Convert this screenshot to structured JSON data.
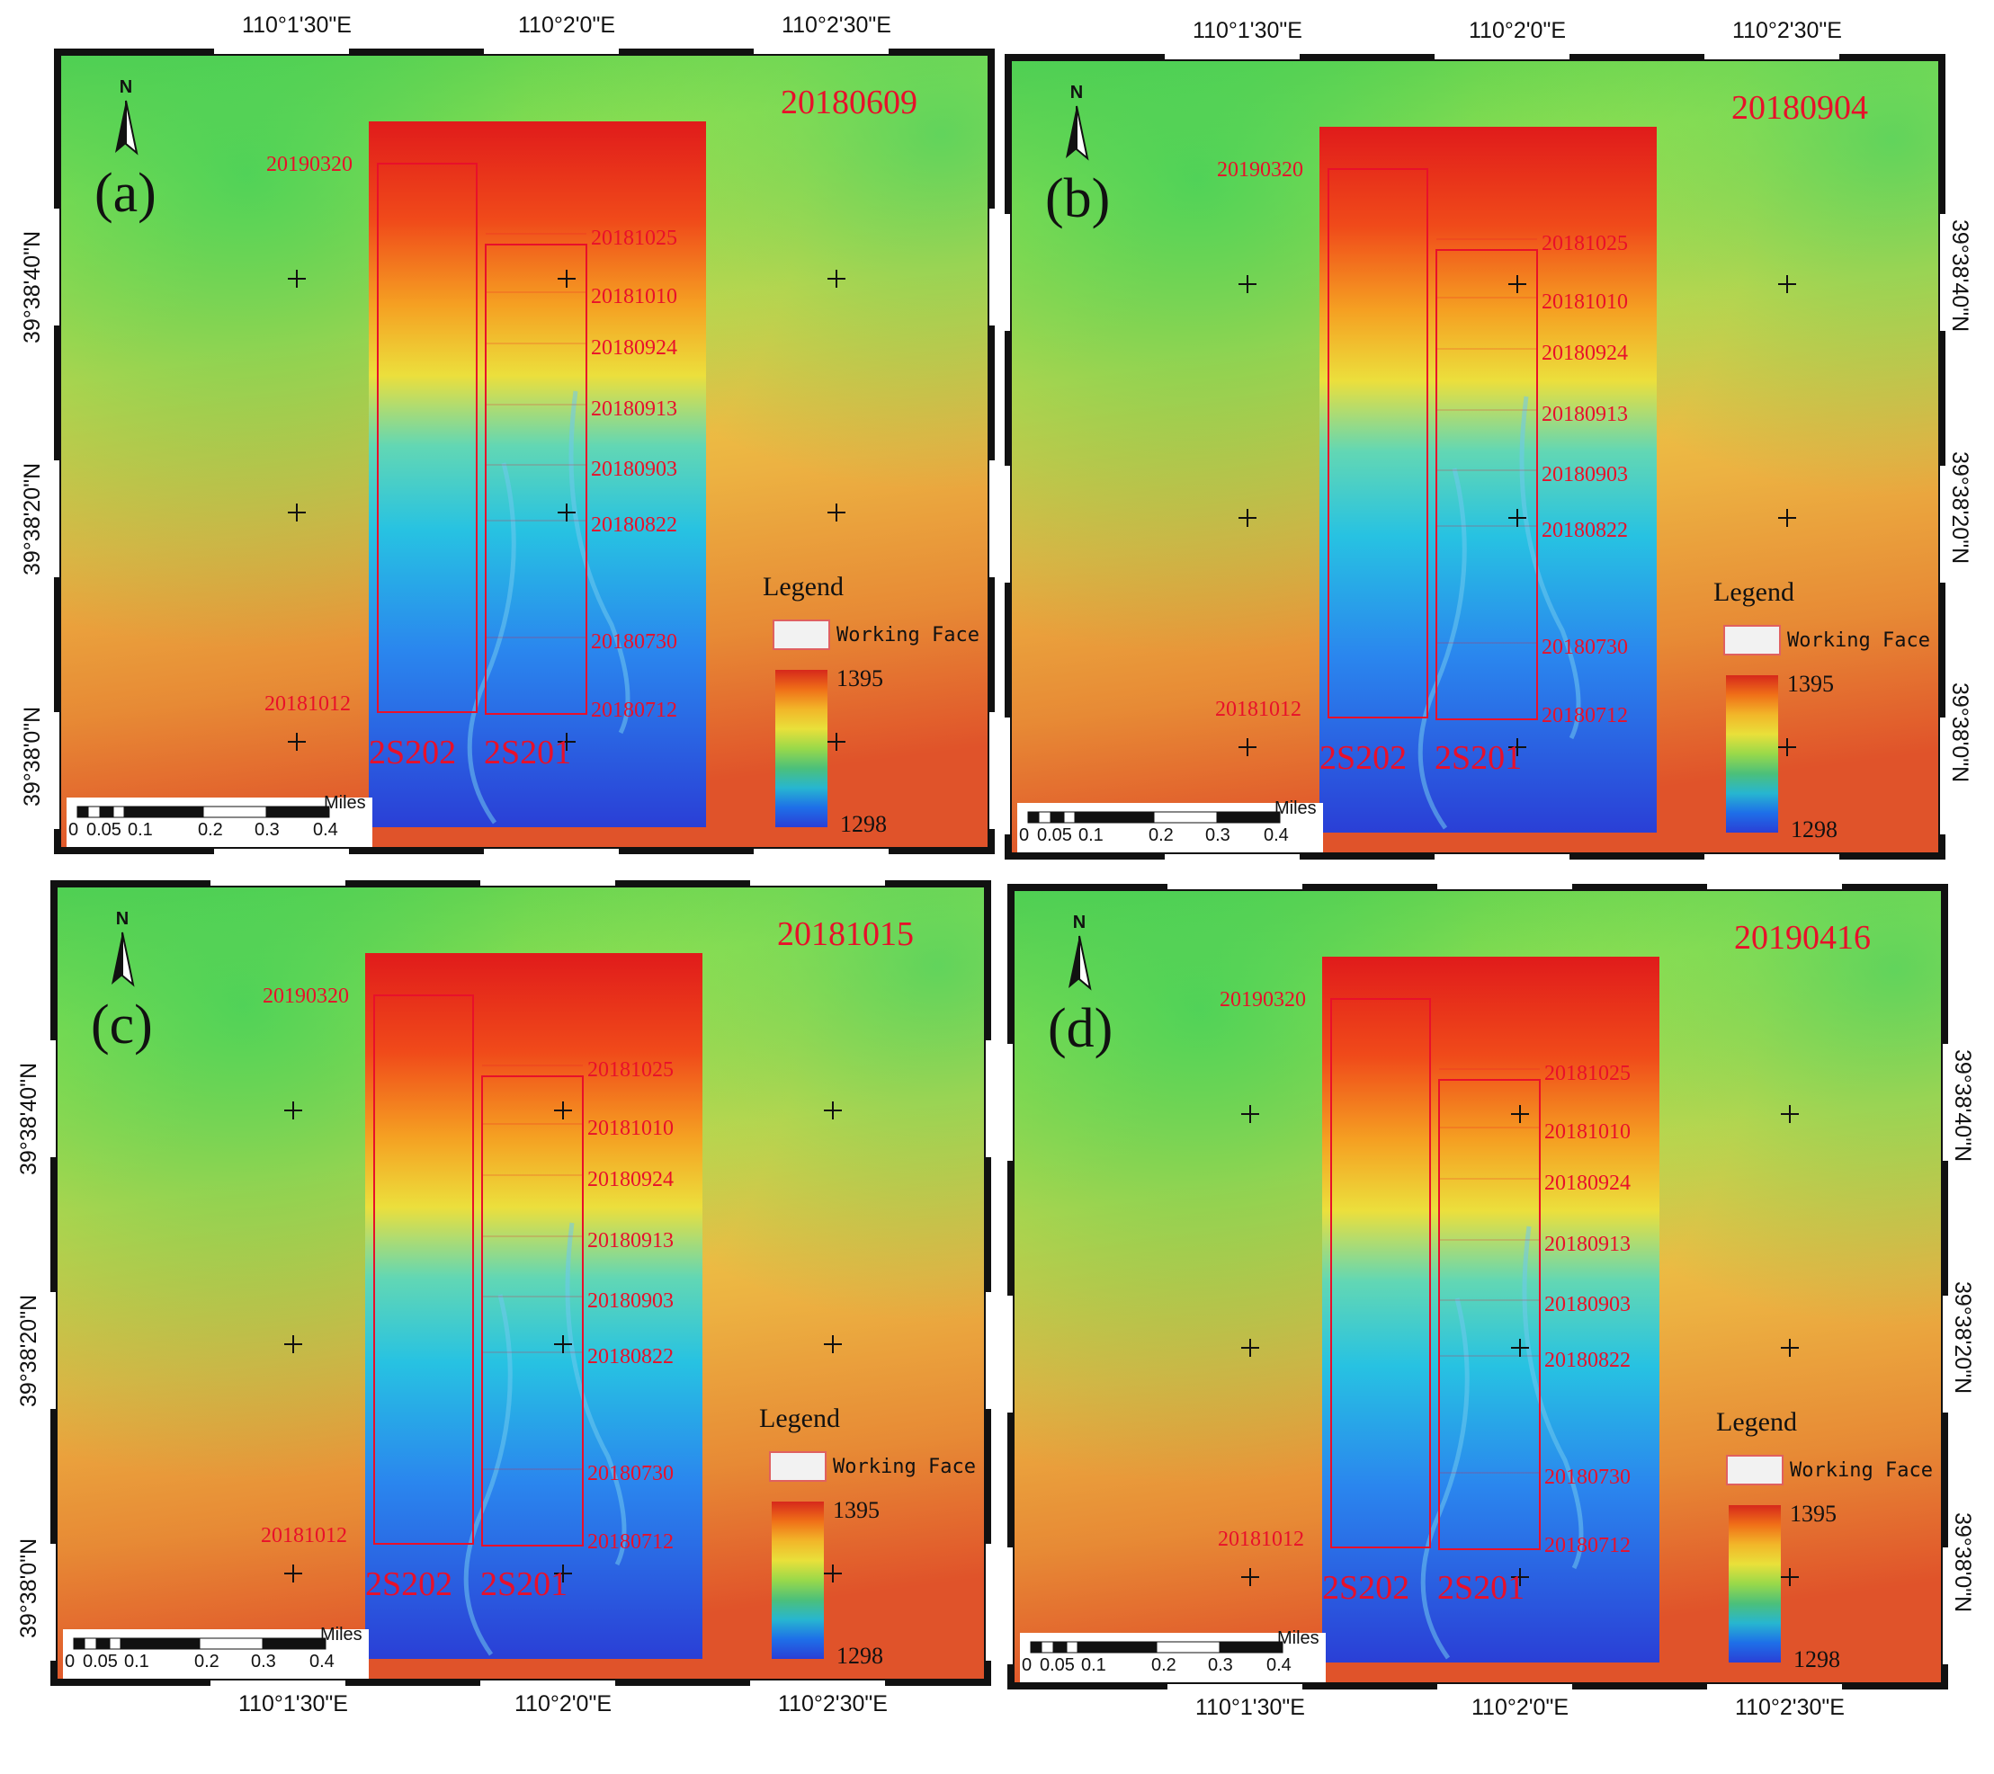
{
  "panels": [
    {
      "id": "a",
      "letter": "(a)",
      "title": "20180609"
    },
    {
      "id": "b",
      "letter": "(b)",
      "title": "20180904"
    },
    {
      "id": "c",
      "letter": "(c)",
      "title": "20181015"
    },
    {
      "id": "d",
      "letter": "(d)",
      "title": "20190416"
    }
  ],
  "lon_labels": [
    "110°1'30\"E",
    "110°2'0\"E",
    "110°2'30\"E"
  ],
  "lat_labels": [
    "39°38'40\"N",
    "39°38'20\"N",
    "39°38'0\"N"
  ],
  "working_faces": {
    "names": [
      "2S202",
      "2S201"
    ],
    "left_dates": [
      "20190320",
      "20181012"
    ],
    "right_dates": [
      "20181025",
      "20181010",
      "20180924",
      "20180913",
      "20180903",
      "20180822",
      "20180730",
      "20180712"
    ]
  },
  "legend": {
    "title": "Legend",
    "item": "Working Face",
    "max": "1395",
    "min": "1298"
  },
  "scale": {
    "unit": "Miles",
    "ticks": [
      "0",
      "0.05",
      "0.1",
      "0.2",
      "0.3",
      "0.4"
    ]
  },
  "north": "N",
  "colors": {
    "ramp": [
      "#d6281b",
      "#f07018",
      "#f2b629",
      "#e9e03a",
      "#99d94a",
      "#4cc07a",
      "#27b6d0",
      "#1e6fe8",
      "#2a3fd6"
    ],
    "annotation": "#e8102a"
  }
}
